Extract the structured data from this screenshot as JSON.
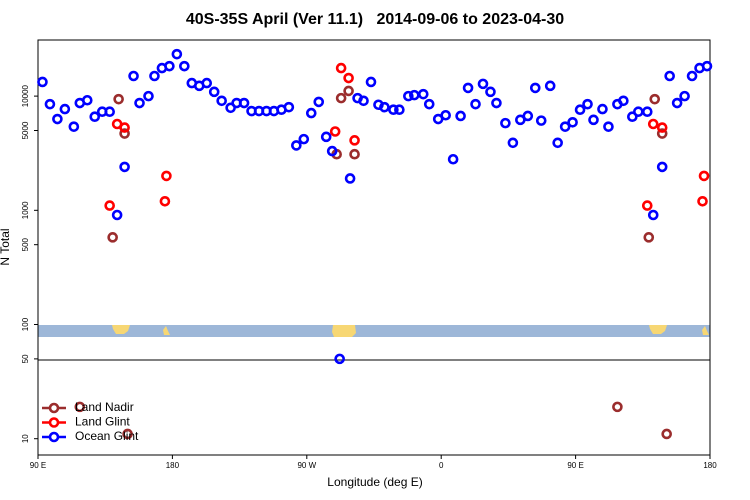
{
  "chart_data": {
    "type": "scatter",
    "title": "40S-35S April (Ver 11.1)   2014-09-06 to 2023-04-30",
    "x_label": "Longitude (deg E)",
    "y_label": "N Total",
    "log_y": true,
    "legend": "lower left",
    "xlim": [
      90,
      540
    ],
    "ylim": [
      7.2,
      31000
    ],
    "xticks": [
      {
        "value": 90,
        "label": "90 E"
      },
      180,
      {
        "value": 270,
        "label": "90 W"
      },
      {
        "value": 360,
        "label": "0"
      },
      {
        "value": 450,
        "label": "90 E"
      },
      {
        "value": 540,
        "label": "180"
      }
    ],
    "yticks": [
      10,
      50,
      100,
      500,
      1000,
      5000,
      10000
    ],
    "series": [
      {
        "name": "Land Nadir",
        "color": "#9b2d2d",
        "x": [
          118,
          140,
          144,
          148,
          150,
          290,
          293,
          298,
          302,
          478,
          499,
          503,
          508,
          511
        ],
        "values": [
          19,
          580,
          9400,
          4700,
          11,
          3100,
          9600,
          11100,
          3100,
          19,
          580,
          9400,
          4700,
          11
        ]
      },
      {
        "name": "Land Glint",
        "color": "#ff0000",
        "x": [
          138,
          143,
          148,
          175,
          176,
          289,
          293,
          298,
          302,
          498,
          502,
          508,
          535,
          536
        ],
        "values": [
          1100,
          5700,
          5300,
          1200,
          2000,
          4900,
          17600,
          14400,
          4100,
          1100,
          5700,
          5300,
          1200,
          2000
        ]
      },
      {
        "name": "Ocean Glint",
        "color": "#0000ff",
        "x": [
          93,
          98,
          103,
          108,
          114,
          118,
          123,
          128,
          133,
          138,
          143,
          148,
          154,
          158,
          164,
          168,
          173,
          178,
          183,
          188,
          193,
          198,
          203,
          208,
          213,
          219,
          223,
          228,
          233,
          238,
          243,
          248,
          253,
          258,
          263,
          268,
          273,
          278,
          283,
          287,
          292,
          299,
          304,
          308,
          313,
          318,
          322,
          328,
          332,
          338,
          342,
          348,
          352,
          358,
          363,
          368,
          373,
          378,
          383,
          388,
          393,
          397,
          403,
          408,
          413,
          418,
          423,
          427,
          433,
          438,
          443,
          448,
          453,
          458,
          462,
          468,
          472,
          478,
          482,
          488,
          492,
          498,
          502,
          508,
          513,
          518,
          523,
          528,
          533,
          538
        ],
        "values": [
          13300,
          8500,
          6300,
          7700,
          5400,
          8700,
          9200,
          6600,
          7300,
          7300,
          910,
          2400,
          15000,
          8700,
          10000,
          15000,
          17600,
          18300,
          23300,
          18300,
          13000,
          12300,
          13000,
          10900,
          9100,
          7900,
          8700,
          8700,
          7400,
          7400,
          7400,
          7400,
          7600,
          8000,
          3700,
          4200,
          7100,
          8900,
          4400,
          3300,
          50,
          1900,
          9600,
          9100,
          13300,
          8400,
          8000,
          7600,
          7600,
          10000,
          10200,
          10400,
          8500,
          6300,
          6800,
          2800,
          6700,
          11800,
          8500,
          12800,
          10900,
          8700,
          5800,
          3900,
          6200,
          6700,
          11800,
          6100,
          12300,
          3900,
          5400,
          5900,
          7600,
          8500,
          6200,
          7700,
          5400,
          8500,
          9100,
          6600,
          7300,
          7300,
          910,
          2400,
          15000,
          8700,
          10000,
          15000,
          17600,
          18300
        ]
      }
    ]
  }
}
